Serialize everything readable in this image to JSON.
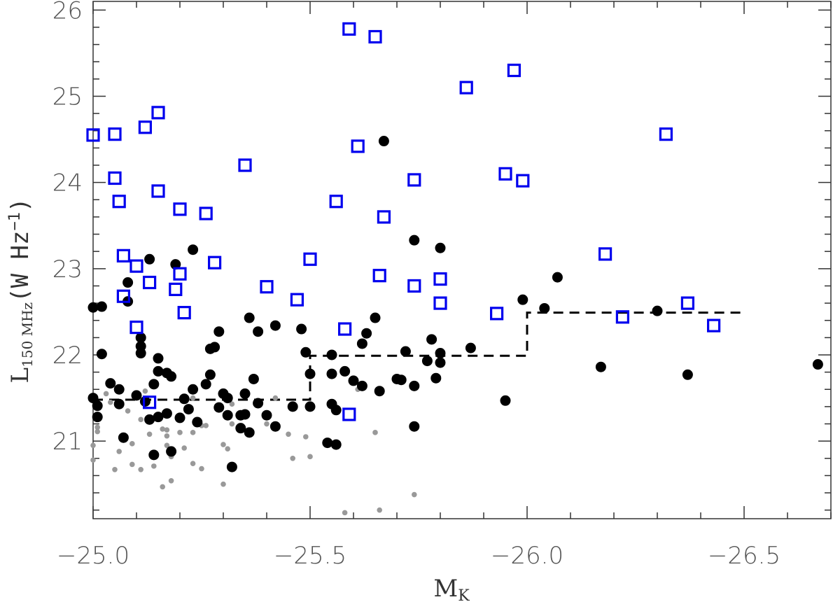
{
  "chart_data": {
    "type": "scatter",
    "title": "",
    "xlabel": {
      "main": "M",
      "sub": "K"
    },
    "ylabel": {
      "main": "L",
      "sub": "150 MHz",
      "paren_open": "(W Hz",
      "sup": "−1",
      "paren_close": ")"
    },
    "xlim": [
      -25.0,
      -26.7
    ],
    "ylim": [
      20.1,
      26.1
    ],
    "x_ticks": [
      {
        "value": -25.0,
        "label": "−25.0"
      },
      {
        "value": -25.5,
        "label": "−25.5"
      },
      {
        "value": -26.0,
        "label": "−26.0"
      },
      {
        "value": -26.5,
        "label": "−26.5"
      }
    ],
    "y_ticks": [
      {
        "value": 21,
        "label": "21"
      },
      {
        "value": 22,
        "label": "22"
      },
      {
        "value": 23,
        "label": "23"
      },
      {
        "value": 24,
        "label": "24"
      },
      {
        "value": 25,
        "label": "25"
      },
      {
        "value": 26,
        "label": "26"
      }
    ],
    "grid": false,
    "colors": {
      "squares": "#0000ee",
      "black": "#000000",
      "gray": "#999999",
      "line": "#000000"
    },
    "series": [
      {
        "marker": "open-square",
        "points": [
          [
            -25.0,
            24.55
          ],
          [
            -25.05,
            24.56
          ],
          [
            -25.12,
            24.64
          ],
          [
            -25.15,
            24.81
          ],
          [
            -25.05,
            24.05
          ],
          [
            -25.06,
            23.78
          ],
          [
            -25.15,
            23.9
          ],
          [
            -25.2,
            23.69
          ],
          [
            -25.26,
            23.64
          ],
          [
            -25.07,
            23.15
          ],
          [
            -25.1,
            23.03
          ],
          [
            -25.13,
            22.84
          ],
          [
            -25.2,
            22.94
          ],
          [
            -25.19,
            22.76
          ],
          [
            -25.21,
            22.49
          ],
          [
            -25.28,
            23.07
          ],
          [
            -25.07,
            22.68
          ],
          [
            -25.1,
            22.32
          ],
          [
            -25.13,
            21.45
          ],
          [
            -25.35,
            24.2
          ],
          [
            -25.4,
            22.79
          ],
          [
            -25.47,
            22.64
          ],
          [
            -25.5,
            23.11
          ],
          [
            -25.56,
            23.78
          ],
          [
            -25.58,
            22.3
          ],
          [
            -25.59,
            25.78
          ],
          [
            -25.61,
            24.42
          ],
          [
            -25.65,
            25.69
          ],
          [
            -25.66,
            22.92
          ],
          [
            -25.67,
            23.6
          ],
          [
            -25.59,
            21.31
          ],
          [
            -25.74,
            24.03
          ],
          [
            -25.74,
            22.8
          ],
          [
            -25.8,
            22.88
          ],
          [
            -25.8,
            22.6
          ],
          [
            -25.86,
            25.1
          ],
          [
            -25.93,
            22.48
          ],
          [
            -25.95,
            24.1
          ],
          [
            -25.97,
            25.3
          ],
          [
            -25.99,
            24.02
          ],
          [
            -26.18,
            23.17
          ],
          [
            -26.22,
            22.44
          ],
          [
            -26.32,
            24.56
          ],
          [
            -26.37,
            22.6
          ],
          [
            -26.43,
            22.34
          ]
        ]
      },
      {
        "marker": "filled-circle",
        "points": [
          [
            -25.0,
            22.55
          ],
          [
            -25.02,
            22.56
          ],
          [
            -25.02,
            22.01
          ],
          [
            -25.0,
            21.5
          ],
          [
            -25.01,
            21.41
          ],
          [
            -25.01,
            21.28
          ],
          [
            -25.04,
            21.67
          ],
          [
            -25.06,
            21.43
          ],
          [
            -25.06,
            21.6
          ],
          [
            -25.07,
            21.04
          ],
          [
            -25.08,
            22.84
          ],
          [
            -25.08,
            22.62
          ],
          [
            -25.1,
            21.53
          ],
          [
            -25.11,
            22.2
          ],
          [
            -25.11,
            22.1
          ],
          [
            -25.11,
            22.02
          ],
          [
            -25.13,
            21.25
          ],
          [
            -25.12,
            21.46
          ],
          [
            -25.14,
            21.66
          ],
          [
            -25.15,
            21.28
          ],
          [
            -25.14,
            20.84
          ],
          [
            -25.13,
            23.11
          ],
          [
            -25.15,
            21.96
          ],
          [
            -25.15,
            21.81
          ],
          [
            -25.17,
            21.79
          ],
          [
            -25.18,
            21.75
          ],
          [
            -25.17,
            21.32
          ],
          [
            -25.18,
            20.88
          ],
          [
            -25.19,
            23.05
          ],
          [
            -25.2,
            21.27
          ],
          [
            -25.21,
            21.49
          ],
          [
            -25.22,
            21.37
          ],
          [
            -25.23,
            21.6
          ],
          [
            -25.24,
            21.22
          ],
          [
            -25.23,
            23.22
          ],
          [
            -25.26,
            21.66
          ],
          [
            -25.27,
            21.77
          ],
          [
            -25.29,
            21.39
          ],
          [
            -25.27,
            22.07
          ],
          [
            -25.28,
            22.09
          ],
          [
            -25.29,
            22.27
          ],
          [
            -25.3,
            21.55
          ],
          [
            -25.31,
            21.3
          ],
          [
            -25.32,
            20.7
          ],
          [
            -25.31,
            21.5
          ],
          [
            -25.34,
            21.15
          ],
          [
            -25.34,
            21.3
          ],
          [
            -25.35,
            21.55
          ],
          [
            -25.35,
            21.31
          ],
          [
            -25.36,
            21.1
          ],
          [
            -25.36,
            22.43
          ],
          [
            -25.37,
            21.72
          ],
          [
            -25.38,
            21.44
          ],
          [
            -25.38,
            22.27
          ],
          [
            -25.4,
            21.3
          ],
          [
            -25.42,
            21.17
          ],
          [
            -25.42,
            22.34
          ],
          [
            -25.46,
            21.4
          ],
          [
            -25.48,
            22.3
          ],
          [
            -25.49,
            22.03
          ],
          [
            -25.5,
            21.4
          ],
          [
            -25.5,
            21.78
          ],
          [
            -25.54,
            20.98
          ],
          [
            -25.55,
            21.43
          ],
          [
            -25.55,
            21.78
          ],
          [
            -25.55,
            22.0
          ],
          [
            -25.56,
            21.36
          ],
          [
            -25.56,
            20.96
          ],
          [
            -25.58,
            21.81
          ],
          [
            -25.6,
            21.7
          ],
          [
            -25.62,
            22.13
          ],
          [
            -25.62,
            21.64
          ],
          [
            -25.63,
            22.25
          ],
          [
            -25.65,
            22.43
          ],
          [
            -25.66,
            21.58
          ],
          [
            -25.67,
            24.48
          ],
          [
            -25.7,
            21.72
          ],
          [
            -25.71,
            21.71
          ],
          [
            -25.72,
            22.04
          ],
          [
            -25.74,
            21.17
          ],
          [
            -25.74,
            21.64
          ],
          [
            -25.74,
            23.33
          ],
          [
            -25.77,
            21.93
          ],
          [
            -25.78,
            22.18
          ],
          [
            -25.79,
            21.73
          ],
          [
            -25.8,
            21.91
          ],
          [
            -25.8,
            22.02
          ],
          [
            -25.8,
            23.24
          ],
          [
            -25.87,
            22.08
          ],
          [
            -25.95,
            21.47
          ],
          [
            -25.99,
            22.64
          ],
          [
            -26.04,
            22.54
          ],
          [
            -26.07,
            22.9
          ],
          [
            -26.17,
            21.86
          ],
          [
            -26.3,
            22.51
          ],
          [
            -26.37,
            21.77
          ],
          [
            -26.67,
            21.89
          ]
        ]
      },
      {
        "marker": "small-gray-dot",
        "points": [
          [
            -25.0,
            20.95
          ],
          [
            -25.0,
            20.78
          ],
          [
            -25.01,
            21.16
          ],
          [
            -25.01,
            21.11
          ],
          [
            -25.03,
            21.55
          ],
          [
            -25.04,
            21.45
          ],
          [
            -25.05,
            20.67
          ],
          [
            -25.06,
            20.88
          ],
          [
            -25.08,
            21.35
          ],
          [
            -25.09,
            20.97
          ],
          [
            -25.09,
            20.73
          ],
          [
            -25.11,
            21.25
          ],
          [
            -25.11,
            20.67
          ],
          [
            -25.13,
            21.08
          ],
          [
            -25.14,
            20.71
          ],
          [
            -25.12,
            21.58
          ],
          [
            -25.16,
            20.47
          ],
          [
            -25.16,
            21.14
          ],
          [
            -25.17,
            21.13
          ],
          [
            -25.17,
            21.06
          ],
          [
            -25.17,
            20.95
          ],
          [
            -25.18,
            20.54
          ],
          [
            -25.18,
            20.82
          ],
          [
            -25.2,
            21.1
          ],
          [
            -25.21,
            20.92
          ],
          [
            -25.23,
            20.74
          ],
          [
            -25.23,
            21.1
          ],
          [
            -25.23,
            21.5
          ],
          [
            -25.25,
            21.18
          ],
          [
            -25.25,
            20.68
          ],
          [
            -25.26,
            21.18
          ],
          [
            -25.3,
            20.5
          ],
          [
            -25.3,
            20.96
          ],
          [
            -25.31,
            20.91
          ],
          [
            -25.32,
            21.2
          ],
          [
            -25.32,
            21.43
          ],
          [
            -25.4,
            21.2
          ],
          [
            -25.42,
            21.5
          ],
          [
            -25.45,
            21.08
          ],
          [
            -25.46,
            20.8
          ],
          [
            -25.49,
            21.05
          ],
          [
            -25.5,
            20.82
          ],
          [
            -25.58,
            20.17
          ],
          [
            -25.61,
            21.6
          ],
          [
            -25.65,
            21.1
          ],
          [
            -25.66,
            20.2
          ],
          [
            -25.74,
            20.38
          ]
        ]
      }
    ],
    "threshold_line": {
      "style": "dashed",
      "points": [
        [
          -25.0,
          21.48
        ],
        [
          -25.5,
          21.48
        ],
        [
          -25.5,
          21.99
        ],
        [
          -26.0,
          21.99
        ],
        [
          -26.0,
          22.49
        ],
        [
          -26.5,
          22.49
        ]
      ]
    }
  }
}
